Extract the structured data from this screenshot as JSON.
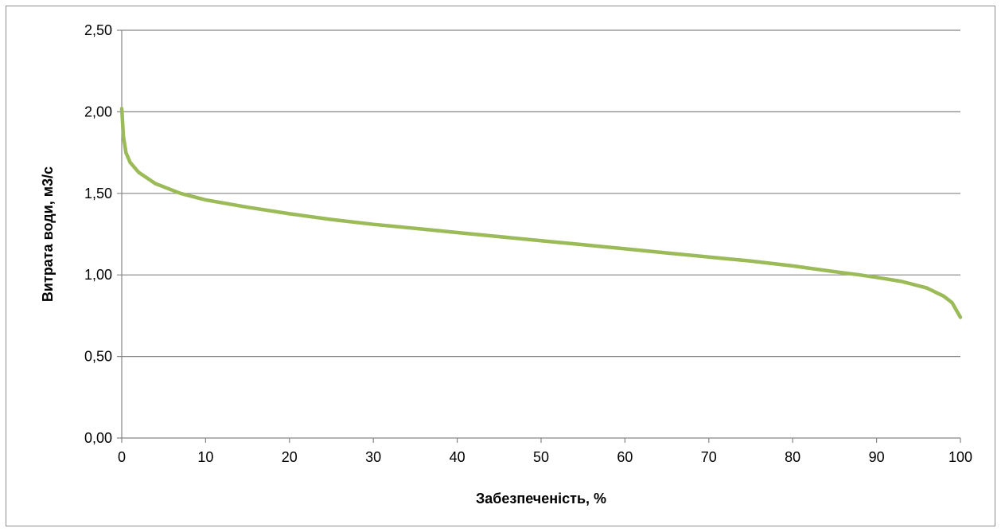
{
  "chart_data": {
    "type": "line",
    "title": "",
    "xlabel": "Забезпеченість, %",
    "ylabel": "Витрата води, м3/с",
    "xlim": [
      0,
      100
    ],
    "ylim": [
      0,
      2.5
    ],
    "x_ticks": [
      "0",
      "10",
      "20",
      "30",
      "40",
      "50",
      "60",
      "70",
      "80",
      "90",
      "100"
    ],
    "y_ticks": [
      "0,00",
      "0,50",
      "1,00",
      "1,50",
      "2,00",
      "2,50"
    ],
    "grid": "horizontal",
    "legend": "none",
    "series": [
      {
        "color": "#9bbb59",
        "x": [
          0,
          0.2,
          0.5,
          1,
          2,
          4,
          7,
          10,
          15,
          20,
          25,
          30,
          35,
          40,
          45,
          50,
          55,
          60,
          65,
          70,
          75,
          80,
          85,
          88,
          90,
          93,
          96,
          98,
          99,
          100
        ],
        "y": [
          2.02,
          1.85,
          1.75,
          1.69,
          1.63,
          1.56,
          1.5,
          1.46,
          1.415,
          1.375,
          1.34,
          1.31,
          1.285,
          1.26,
          1.235,
          1.21,
          1.185,
          1.16,
          1.135,
          1.11,
          1.085,
          1.055,
          1.02,
          1.0,
          0.985,
          0.96,
          0.92,
          0.87,
          0.83,
          0.74
        ]
      }
    ]
  }
}
